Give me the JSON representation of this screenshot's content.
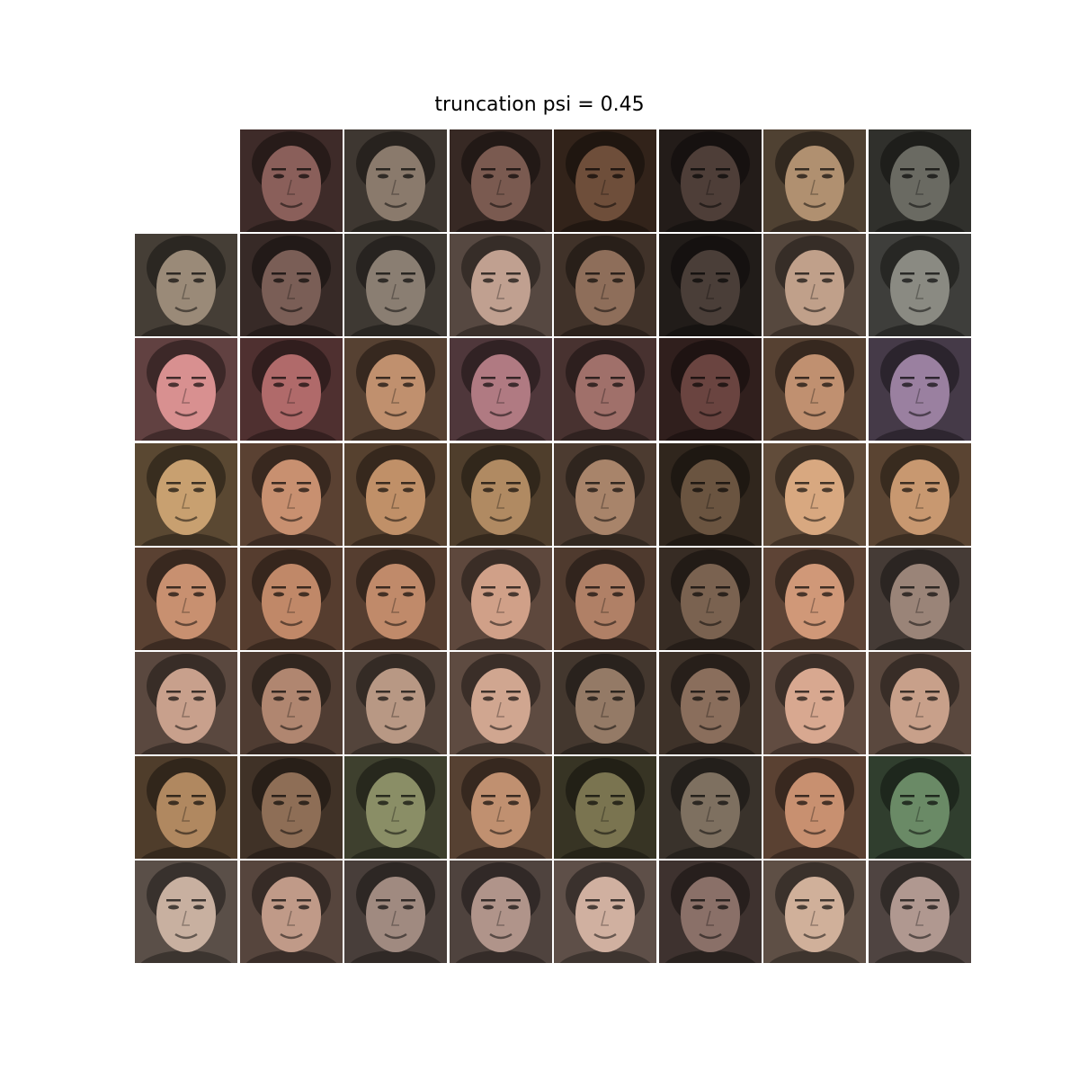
{
  "title": "truncation psi = 0.45",
  "grid": {
    "rows": 8,
    "cols": 8,
    "empty_cells": [
      [
        0,
        0
      ]
    ],
    "tiles": [
      [
        "",
        "#8a5f5a",
        "#8a7a6c",
        "#7a5a50",
        "#6e4e3a",
        "#4e3e38",
        "#b09070",
        "#6a6a62"
      ],
      [
        "#9a8a78",
        "#7a5e56",
        "#8a7e72",
        "#c0a090",
        "#8e6e5a",
        "#4a3e38",
        "#c0a08a",
        "#8a8a82"
      ],
      [
        "#d89090",
        "#b06a6a",
        "#c0906e",
        "#b07a82",
        "#a0706a",
        "#6a4440",
        "#c09070",
        "#9a80a0"
      ],
      [
        "#c8a070",
        "#c89070",
        "#c09068",
        "#b08a62",
        "#a8846a",
        "#6a5440",
        "#d8a880",
        "#c89870"
      ],
      [
        "#c89070",
        "#c08868",
        "#c08a6a",
        "#d0a088",
        "#b08066",
        "#7a6250",
        "#d09878",
        "#9a8478"
      ],
      [
        "#c8a08c",
        "#b08670",
        "#b89884",
        "#d0a690",
        "#947a66",
        "#8a6e5c",
        "#d8a890",
        "#c8a08a"
      ],
      [
        "#b08860",
        "#8e6e56",
        "#8a8e66",
        "#c09070",
        "#7a7450",
        "#7e7060",
        "#c89070",
        "#6a8a66"
      ],
      [
        "#c8b0a0",
        "#c09a88",
        "#a08a80",
        "#b0948a",
        "#d0b0a0",
        "#8a7068",
        "#d0b09a",
        "#b09890"
      ]
    ]
  }
}
